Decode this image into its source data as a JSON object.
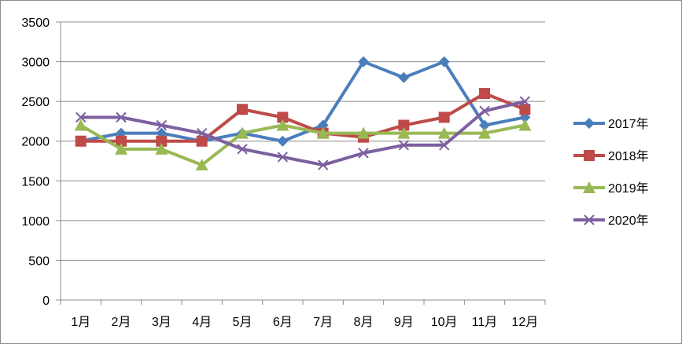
{
  "chart_data": {
    "type": "line",
    "title": "",
    "xlabel": "",
    "ylabel": "",
    "ylim": [
      0,
      3500
    ],
    "ytick_step": 500,
    "yticks": [
      "0",
      "500",
      "1000",
      "1500",
      "2000",
      "2500",
      "3000",
      "3500"
    ],
    "grid": true,
    "legend": "right",
    "categories": [
      "1月",
      "2月",
      "3月",
      "4月",
      "5月",
      "6月",
      "7月",
      "8月",
      "9月",
      "10月",
      "11月",
      "12月"
    ],
    "series": [
      {
        "name": "2017年",
        "marker": "diamond",
        "color": "#4a7ebb",
        "values": [
          2000,
          2100,
          2100,
          2000,
          2100,
          2000,
          2200,
          3000,
          2800,
          3000,
          2200,
          2300
        ]
      },
      {
        "name": "2018年",
        "marker": "square",
        "color": "#be4b48",
        "values": [
          2000,
          2000,
          2000,
          2000,
          2400,
          2300,
          2100,
          2050,
          2200,
          2300,
          2600,
          2400
        ]
      },
      {
        "name": "2019年",
        "marker": "triangle",
        "color": "#98b954",
        "values": [
          2200,
          1900,
          1900,
          1700,
          2100,
          2200,
          2100,
          2100,
          2100,
          2100,
          2100,
          2200
        ]
      },
      {
        "name": "2020年",
        "marker": "x",
        "color": "#7d60a0",
        "values": [
          2300,
          2300,
          2200,
          2100,
          1900,
          1800,
          1700,
          1850,
          1950,
          1950,
          2380,
          2500
        ]
      }
    ]
  }
}
